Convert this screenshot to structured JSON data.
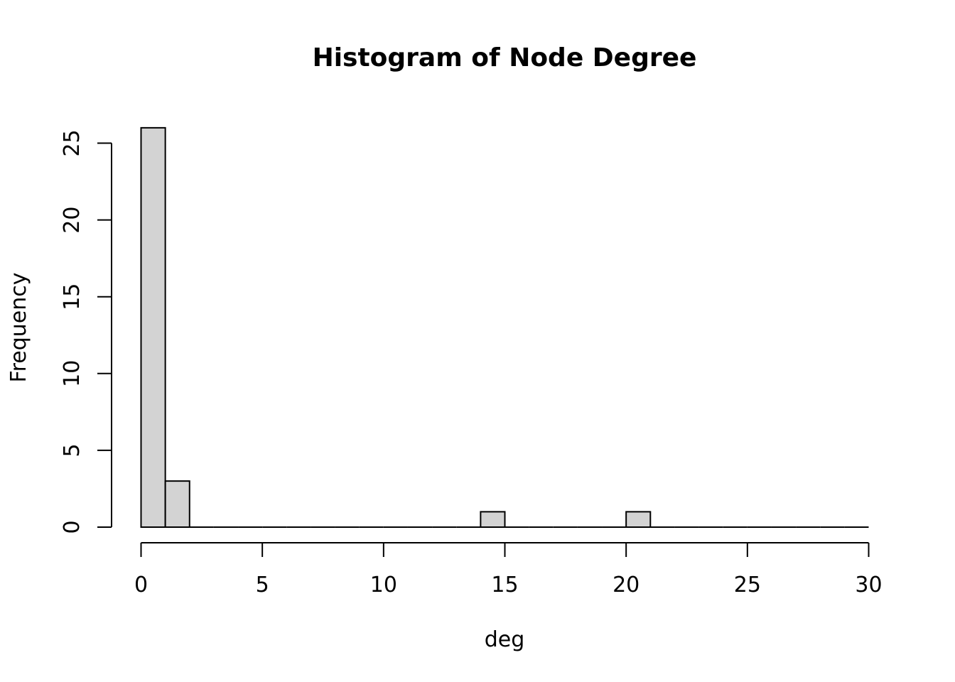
{
  "chart_data": {
    "type": "bar",
    "title": "Histogram of Node Degree",
    "xlabel": "deg",
    "ylabel": "Frequency",
    "bins": [
      [
        0,
        1,
        26
      ],
      [
        1,
        2,
        3
      ],
      [
        2,
        3,
        0
      ],
      [
        3,
        4,
        0
      ],
      [
        4,
        5,
        0
      ],
      [
        5,
        6,
        0
      ],
      [
        6,
        7,
        0
      ],
      [
        7,
        8,
        0
      ],
      [
        8,
        9,
        0
      ],
      [
        9,
        10,
        0
      ],
      [
        10,
        11,
        0
      ],
      [
        11,
        12,
        0
      ],
      [
        12,
        13,
        0
      ],
      [
        13,
        14,
        0
      ],
      [
        14,
        15,
        1
      ],
      [
        15,
        16,
        0
      ],
      [
        16,
        17,
        0
      ],
      [
        17,
        18,
        0
      ],
      [
        18,
        19,
        0
      ],
      [
        19,
        20,
        0
      ],
      [
        20,
        21,
        1
      ],
      [
        21,
        22,
        0
      ],
      [
        22,
        23,
        0
      ],
      [
        23,
        24,
        0
      ],
      [
        24,
        25,
        0
      ],
      [
        25,
        26,
        0
      ],
      [
        26,
        27,
        0
      ],
      [
        27,
        28,
        0
      ],
      [
        28,
        29,
        0
      ],
      [
        29,
        30,
        0
      ]
    ],
    "xlim": [
      0,
      30
    ],
    "ylim": [
      0,
      26
    ],
    "x_ticks": [
      0,
      5,
      10,
      15,
      20,
      25,
      30
    ],
    "y_ticks": [
      0,
      5,
      10,
      15,
      20,
      25
    ],
    "bar_fill": "#d3d3d3",
    "grid": false
  }
}
